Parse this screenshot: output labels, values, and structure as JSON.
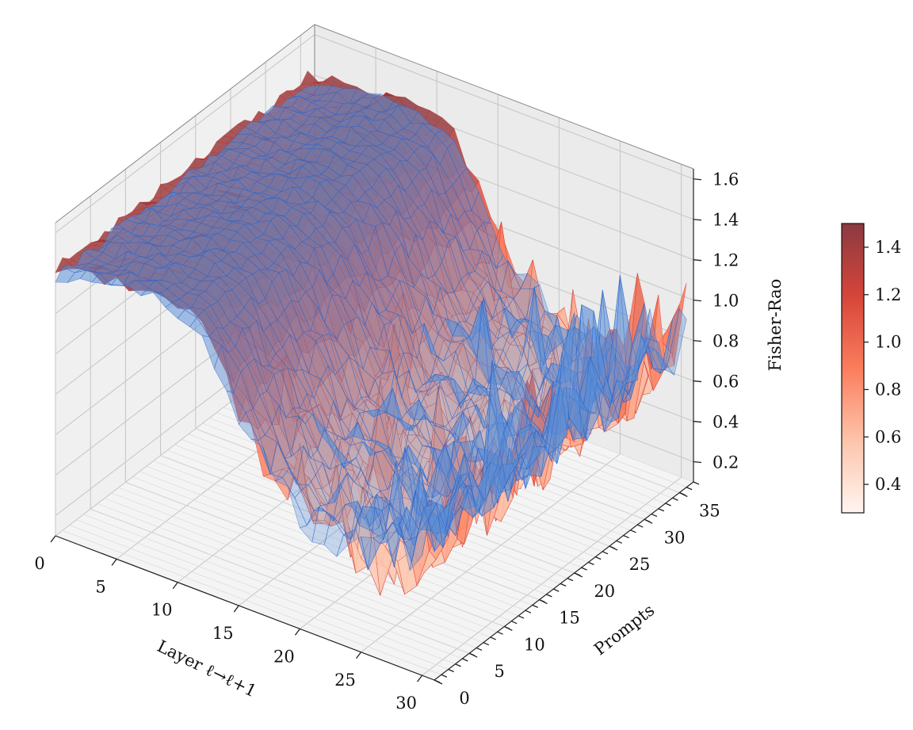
{
  "chart_data": {
    "type": "surface3d",
    "x_axis": {
      "label": "Layer ℓ→ℓ+1",
      "ticks": [
        "0",
        "5",
        "10",
        "15",
        "20",
        "25",
        "30"
      ],
      "range": [
        0,
        31
      ]
    },
    "y_axis": {
      "label": "Prompts",
      "ticks": [
        "0",
        "5",
        "10",
        "15",
        "20",
        "25",
        "30",
        "35"
      ],
      "range": [
        0,
        37
      ]
    },
    "z_axis": {
      "label": "Fisher-Rao",
      "ticks": [
        "0.2",
        "0.4",
        "0.6",
        "0.8",
        "1.0",
        "1.2",
        "1.4",
        "1.6"
      ],
      "range": [
        0.1,
        1.65
      ]
    },
    "colorbar": {
      "ticks": [
        "0.4",
        "0.6",
        "0.8",
        "1.0",
        "1.2",
        "1.4"
      ],
      "range": [
        0.28,
        1.5
      ],
      "colormap": "Reds"
    },
    "series": [
      {
        "style": "red-colormap-surface",
        "profile_by_layer": [
          1.42,
          1.43,
          1.44,
          1.45,
          1.46,
          1.47,
          1.48,
          1.5,
          1.5,
          1.49,
          1.47,
          1.45,
          1.4,
          1.32,
          1.2,
          1.08,
          0.95,
          0.85,
          0.78,
          0.72,
          0.68,
          0.65,
          0.63,
          0.6,
          0.58,
          0.56,
          0.55,
          0.55,
          0.6,
          0.68,
          0.8,
          0.95
        ]
      },
      {
        "style": "blue-translucent-surface",
        "profile_by_layer": [
          1.38,
          1.4,
          1.41,
          1.42,
          1.43,
          1.44,
          1.45,
          1.46,
          1.46,
          1.45,
          1.43,
          1.4,
          1.35,
          1.27,
          1.16,
          1.05,
          0.94,
          0.85,
          0.79,
          0.74,
          0.7,
          0.67,
          0.65,
          0.63,
          0.61,
          0.6,
          0.6,
          0.61,
          0.66,
          0.73,
          0.83,
          0.95
        ]
      }
    ],
    "grid": true,
    "colors": {
      "red_edge": "#cc2a20",
      "blue_edge": "#2a60c8",
      "blue_fill": "#5a8fd8",
      "pane": "#f2f2f2"
    }
  }
}
